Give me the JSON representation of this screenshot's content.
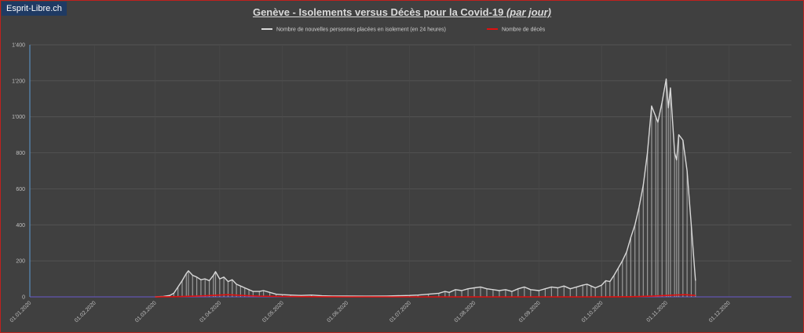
{
  "brand": "Esprit-Libre.ch",
  "colors": {
    "background": "#404040",
    "isolation": "#d9d9d9",
    "deaths": "#e01010",
    "grid": "#5a5a5a",
    "border": "#c0201e"
  },
  "chart_data": {
    "type": "line",
    "title": "Genève - Isolements versus Décès pour la Covid-19",
    "title_suffix": "(par jour)",
    "xlabel": "",
    "ylabel": "",
    "ylim": [
      0,
      1400
    ],
    "y_ticks": [
      "0",
      "200",
      "400",
      "600",
      "800",
      "1'000",
      "1'200",
      "1'400"
    ],
    "x_ticks": [
      "01.01.2020",
      "01.02.2020",
      "01.03.2020",
      "01.04.2020",
      "01.05.2020",
      "01.06.2020",
      "01.07.2020",
      "01.08.2020",
      "01.09.2020",
      "01.10.2020",
      "01.11.2020",
      "01.12.2020"
    ],
    "x_range": [
      "2020-01-01",
      "2020-12-31"
    ],
    "legend_position": "top-center",
    "grid": true,
    "series": [
      {
        "name": "Nombre de nouvelles personnes placées en isolement (en 24 heures)",
        "points": [
          [
            "2020-03-01",
            0
          ],
          [
            "2020-03-05",
            2
          ],
          [
            "2020-03-08",
            8
          ],
          [
            "2020-03-10",
            20
          ],
          [
            "2020-03-12",
            55
          ],
          [
            "2020-03-14",
            90
          ],
          [
            "2020-03-16",
            130
          ],
          [
            "2020-03-17",
            145
          ],
          [
            "2020-03-19",
            120
          ],
          [
            "2020-03-21",
            110
          ],
          [
            "2020-03-23",
            95
          ],
          [
            "2020-03-25",
            100
          ],
          [
            "2020-03-27",
            90
          ],
          [
            "2020-03-29",
            120
          ],
          [
            "2020-03-30",
            140
          ],
          [
            "2020-04-01",
            100
          ],
          [
            "2020-04-03",
            110
          ],
          [
            "2020-04-05",
            85
          ],
          [
            "2020-04-07",
            95
          ],
          [
            "2020-04-09",
            70
          ],
          [
            "2020-04-11",
            60
          ],
          [
            "2020-04-13",
            50
          ],
          [
            "2020-04-15",
            40
          ],
          [
            "2020-04-17",
            30
          ],
          [
            "2020-04-20",
            30
          ],
          [
            "2020-04-22",
            35
          ],
          [
            "2020-04-25",
            25
          ],
          [
            "2020-04-28",
            15
          ],
          [
            "2020-05-01",
            12
          ],
          [
            "2020-05-05",
            10
          ],
          [
            "2020-05-10",
            8
          ],
          [
            "2020-05-15",
            10
          ],
          [
            "2020-05-20",
            6
          ],
          [
            "2020-05-25",
            5
          ],
          [
            "2020-06-01",
            5
          ],
          [
            "2020-06-10",
            4
          ],
          [
            "2020-06-20",
            5
          ],
          [
            "2020-07-01",
            8
          ],
          [
            "2020-07-05",
            10
          ],
          [
            "2020-07-10",
            15
          ],
          [
            "2020-07-15",
            20
          ],
          [
            "2020-07-18",
            30
          ],
          [
            "2020-07-20",
            25
          ],
          [
            "2020-07-23",
            40
          ],
          [
            "2020-07-26",
            35
          ],
          [
            "2020-07-29",
            45
          ],
          [
            "2020-08-01",
            50
          ],
          [
            "2020-08-04",
            55
          ],
          [
            "2020-08-07",
            45
          ],
          [
            "2020-08-10",
            40
          ],
          [
            "2020-08-13",
            35
          ],
          [
            "2020-08-16",
            40
          ],
          [
            "2020-08-19",
            30
          ],
          [
            "2020-08-22",
            45
          ],
          [
            "2020-08-25",
            55
          ],
          [
            "2020-08-28",
            40
          ],
          [
            "2020-09-01",
            35
          ],
          [
            "2020-09-04",
            45
          ],
          [
            "2020-09-07",
            55
          ],
          [
            "2020-09-10",
            50
          ],
          [
            "2020-09-13",
            60
          ],
          [
            "2020-09-16",
            45
          ],
          [
            "2020-09-19",
            55
          ],
          [
            "2020-09-22",
            65
          ],
          [
            "2020-09-24",
            70
          ],
          [
            "2020-09-26",
            60
          ],
          [
            "2020-09-28",
            50
          ],
          [
            "2020-10-01",
            65
          ],
          [
            "2020-10-03",
            90
          ],
          [
            "2020-10-05",
            85
          ],
          [
            "2020-10-07",
            120
          ],
          [
            "2020-10-09",
            160
          ],
          [
            "2020-10-11",
            200
          ],
          [
            "2020-10-13",
            250
          ],
          [
            "2020-10-15",
            330
          ],
          [
            "2020-10-17",
            400
          ],
          [
            "2020-10-19",
            500
          ],
          [
            "2020-10-21",
            620
          ],
          [
            "2020-10-23",
            800
          ],
          [
            "2020-10-25",
            1060
          ],
          [
            "2020-10-27",
            1000
          ],
          [
            "2020-10-28",
            970
          ],
          [
            "2020-10-30",
            1080
          ],
          [
            "2020-11-01",
            1210
          ],
          [
            "2020-11-02",
            1050
          ],
          [
            "2020-11-03",
            1160
          ],
          [
            "2020-11-05",
            800
          ],
          [
            "2020-11-06",
            760
          ],
          [
            "2020-11-07",
            900
          ],
          [
            "2020-11-09",
            870
          ],
          [
            "2020-11-11",
            700
          ],
          [
            "2020-11-13",
            400
          ],
          [
            "2020-11-15",
            90
          ]
        ]
      },
      {
        "name": "Nombre de décès",
        "points": [
          [
            "2020-03-01",
            0
          ],
          [
            "2020-03-10",
            1
          ],
          [
            "2020-03-20",
            4
          ],
          [
            "2020-03-25",
            6
          ],
          [
            "2020-04-01",
            10
          ],
          [
            "2020-04-05",
            12
          ],
          [
            "2020-04-10",
            9
          ],
          [
            "2020-04-15",
            6
          ],
          [
            "2020-04-20",
            4
          ],
          [
            "2020-05-01",
            2
          ],
          [
            "2020-05-15",
            1
          ],
          [
            "2020-06-01",
            0
          ],
          [
            "2020-07-01",
            0
          ],
          [
            "2020-08-01",
            0
          ],
          [
            "2020-09-01",
            0
          ],
          [
            "2020-10-01",
            0
          ],
          [
            "2020-10-15",
            1
          ],
          [
            "2020-10-25",
            4
          ],
          [
            "2020-11-01",
            8
          ],
          [
            "2020-11-05",
            10
          ],
          [
            "2020-11-10",
            12
          ],
          [
            "2020-11-15",
            8
          ]
        ]
      }
    ]
  }
}
